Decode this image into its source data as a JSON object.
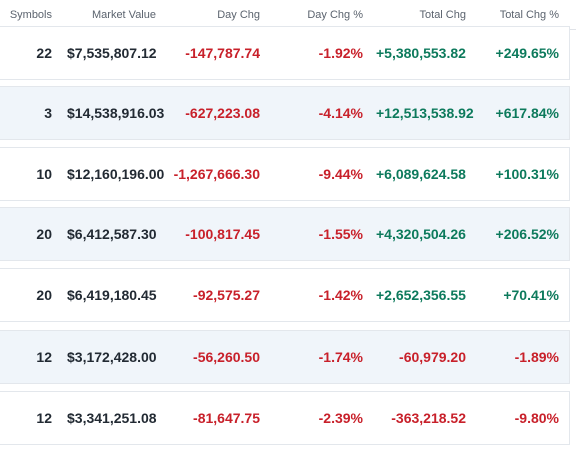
{
  "columns": {
    "symbols": "Symbols",
    "market_value": "Market Value",
    "day_chg": "Day Chg",
    "day_chg_pct": "Day Chg %",
    "total_chg": "Total Chg",
    "total_chg_pct": "Total Chg %"
  },
  "colors": {
    "negative": "#c8202a",
    "positive": "#0d7a5c",
    "row_shade": "#f0f5fa"
  },
  "rows": [
    {
      "symbols": "22",
      "market_value": "$7,535,807.12",
      "day_chg": "-147,787.74",
      "day_chg_pct": "-1.92%",
      "total_chg": "+5,380,553.82",
      "total_chg_pct": "+249.65%"
    },
    {
      "symbols": "3",
      "market_value": "$14,538,916.03",
      "day_chg": "-627,223.08",
      "day_chg_pct": "-4.14%",
      "total_chg": "+12,513,538.92",
      "total_chg_pct": "+617.84%"
    },
    {
      "symbols": "10",
      "market_value": "$12,160,196.00",
      "day_chg": "-1,267,666.30",
      "day_chg_pct": "-9.44%",
      "total_chg": "+6,089,624.58",
      "total_chg_pct": "+100.31%"
    },
    {
      "symbols": "20",
      "market_value": "$6,412,587.30",
      "day_chg": "-100,817.45",
      "day_chg_pct": "-1.55%",
      "total_chg": "+4,320,504.26",
      "total_chg_pct": "+206.52%"
    },
    {
      "symbols": "20",
      "market_value": "$6,419,180.45",
      "day_chg": "-92,575.27",
      "day_chg_pct": "-1.42%",
      "total_chg": "+2,652,356.55",
      "total_chg_pct": "+70.41%"
    },
    {
      "symbols": "12",
      "market_value": "$3,172,428.00",
      "day_chg": "-56,260.50",
      "day_chg_pct": "-1.74%",
      "total_chg": "-60,979.20",
      "total_chg_pct": "-1.89%"
    },
    {
      "symbols": "12",
      "market_value": "$3,341,251.08",
      "day_chg": "-81,647.75",
      "day_chg_pct": "-2.39%",
      "total_chg": "-363,218.52",
      "total_chg_pct": "-9.80%"
    }
  ]
}
